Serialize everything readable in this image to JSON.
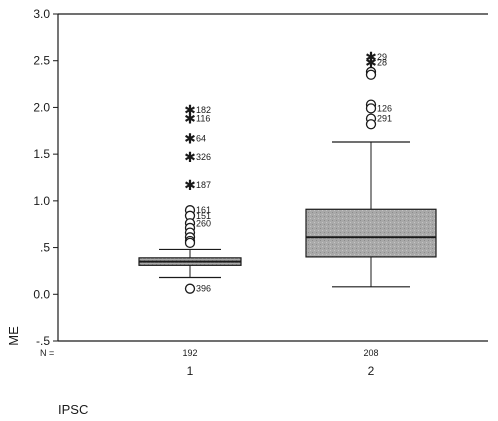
{
  "chart_data": {
    "type": "boxplot",
    "ylabel": "ME",
    "xlabel": "IPSC",
    "ylim": [
      -0.5,
      3.0
    ],
    "yticks": [
      "3.0",
      "2.5",
      "2.0",
      "1.5",
      "1.0",
      ".5",
      "0.0",
      "-.5"
    ],
    "ytick_values": [
      3.0,
      2.5,
      2.0,
      1.5,
      1.0,
      0.5,
      0.0,
      -0.5
    ],
    "n_label": "N =",
    "groups": [
      {
        "category": "1",
        "n": "192",
        "min": 0.18,
        "q1": 0.31,
        "median": 0.35,
        "q3": 0.39,
        "max": 0.48,
        "extremes": [
          {
            "label": "182",
            "value": 1.97
          },
          {
            "label": "116",
            "value": 1.88
          },
          {
            "label": "64",
            "value": 1.67
          },
          {
            "label": "326",
            "value": 1.47
          },
          {
            "label": "187",
            "value": 1.17
          }
        ],
        "outliers": [
          {
            "label": "161",
            "value": 0.9
          },
          {
            "label": "151",
            "value": 0.84
          },
          {
            "label": "260",
            "value": 0.76
          },
          {
            "label": "",
            "value": 0.71
          },
          {
            "label": "",
            "value": 0.66
          },
          {
            "label": "",
            "value": 0.61
          },
          {
            "label": "",
            "value": 0.57
          },
          {
            "label": "",
            "value": 0.55
          },
          {
            "label": "396",
            "value": 0.06
          }
        ]
      },
      {
        "category": "2",
        "n": "208",
        "min": 0.08,
        "q1": 0.4,
        "median": 0.61,
        "q3": 0.91,
        "max": 1.63,
        "extremes": [
          {
            "label": "29",
            "value": 2.54
          },
          {
            "label": "28",
            "value": 2.48
          }
        ],
        "outliers": [
          {
            "label": "",
            "value": 2.38
          },
          {
            "label": "",
            "value": 2.35
          },
          {
            "label": "",
            "value": 2.03
          },
          {
            "label": "126",
            "value": 1.99
          },
          {
            "label": "291",
            "value": 1.88
          },
          {
            "label": "",
            "value": 1.82
          }
        ]
      }
    ],
    "box_fill": "#a9a9a9",
    "line_color": "#1a1a1a"
  }
}
